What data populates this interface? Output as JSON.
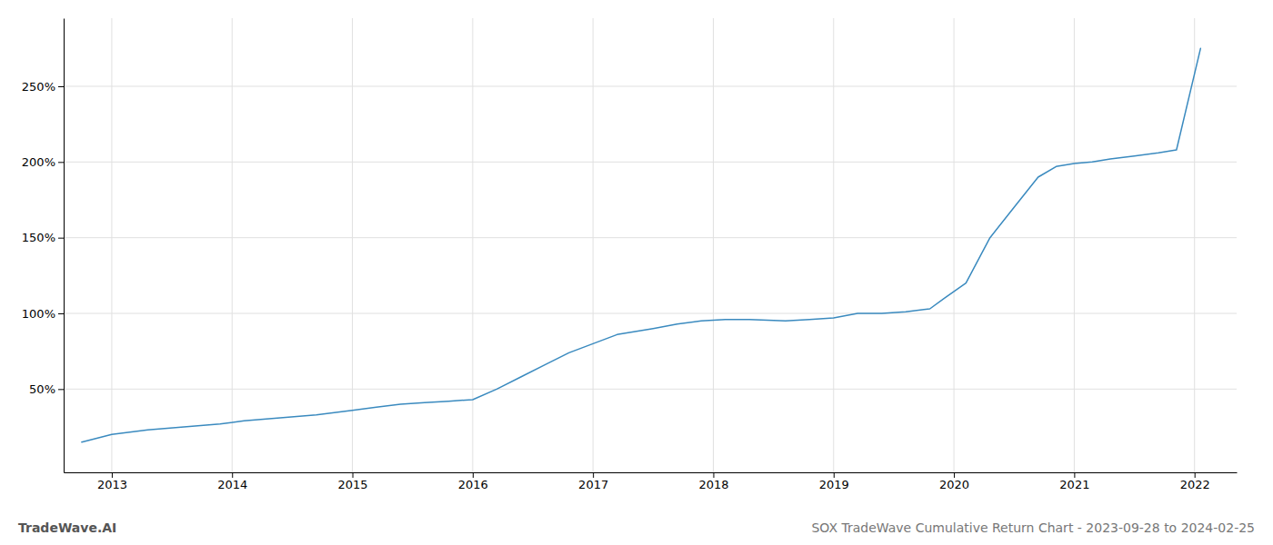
{
  "chart_data": {
    "type": "line",
    "title": "SOX TradeWave Cumulative Return Chart - 2023-09-28 to 2024-02-25",
    "annotations": [
      "TradeWave.AI"
    ],
    "x": [
      2012.75,
      2013.0,
      2013.3,
      2013.6,
      2013.9,
      2014.1,
      2014.4,
      2014.7,
      2015.0,
      2015.2,
      2015.4,
      2015.6,
      2015.8,
      2016.0,
      2016.2,
      2016.4,
      2016.6,
      2016.8,
      2017.0,
      2017.2,
      2017.5,
      2017.7,
      2017.9,
      2018.1,
      2018.3,
      2018.6,
      2018.8,
      2019.0,
      2019.2,
      2019.4,
      2019.6,
      2019.8,
      2019.92,
      2020.1,
      2020.3,
      2020.5,
      2020.7,
      2020.85,
      2021.0,
      2021.15,
      2021.3,
      2021.5,
      2021.7,
      2021.85,
      2022.05
    ],
    "values": [
      15,
      20,
      23,
      25,
      27,
      29,
      31,
      33,
      36,
      38,
      40,
      41,
      42,
      43,
      50,
      58,
      66,
      74,
      80,
      86,
      90,
      93,
      95,
      96,
      96,
      95,
      96,
      97,
      100,
      100,
      101,
      103,
      110,
      120,
      150,
      170,
      190,
      197,
      199,
      200,
      202,
      204,
      206,
      208,
      275
    ],
    "color": "#3a8abf",
    "xlim": [
      2012.6,
      2022.35
    ],
    "ylim": [
      -5,
      295
    ],
    "xticks": [
      2013,
      2014,
      2015,
      2016,
      2017,
      2018,
      2019,
      2020,
      2021,
      2022
    ],
    "yticks": [
      {
        "value": 50,
        "label": "50%"
      },
      {
        "value": 100,
        "label": "100%"
      },
      {
        "value": 150,
        "label": "150%"
      },
      {
        "value": 200,
        "label": "200%"
      },
      {
        "value": 250,
        "label": "250%"
      }
    ],
    "grid": true
  }
}
